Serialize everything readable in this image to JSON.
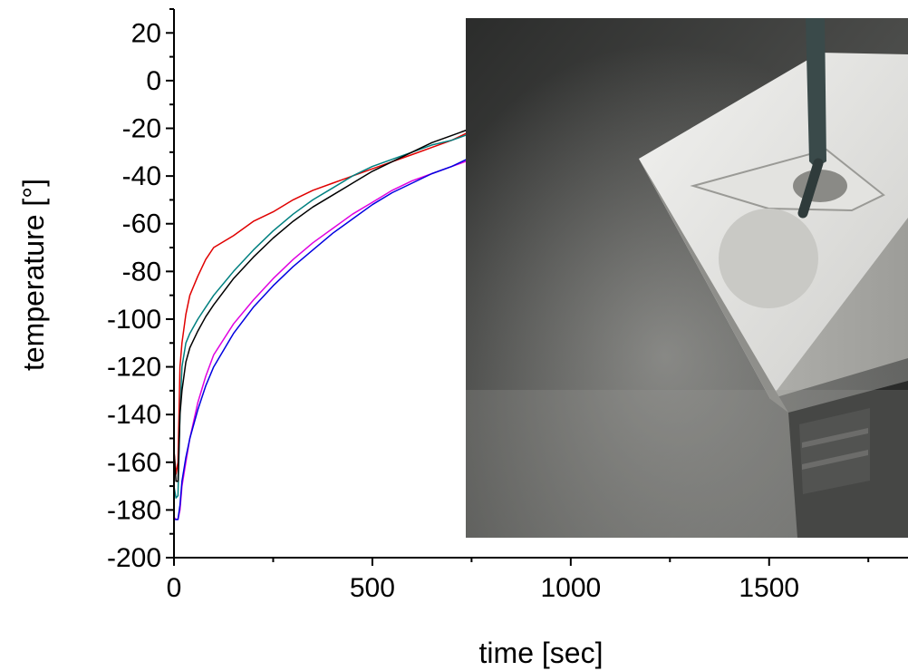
{
  "chart_data": {
    "type": "line",
    "xlabel": "time [sec]",
    "ylabel": "temperature [°]",
    "xlim": [
      0,
      1850
    ],
    "ylim": [
      -200,
      30
    ],
    "x_ticks": [
      0,
      500,
      1000,
      1500
    ],
    "x_tick_labels": [
      "0",
      "500",
      "1000",
      "1500"
    ],
    "y_ticks": [
      20,
      0,
      -20,
      -40,
      -60,
      -80,
      -100,
      -120,
      -140,
      -160,
      -180,
      -200
    ],
    "y_tick_labels": [
      "20",
      "0",
      "-20",
      "-40",
      "-60",
      "-80",
      "-100",
      "-120",
      "-140",
      "-160",
      "-180",
      "-200"
    ],
    "grid": false,
    "legend": "none",
    "inset_photo": "frosted cube with metal rod in cold vapor",
    "series": [
      {
        "color": "#e00000",
        "x": [
          0,
          5,
          10,
          15,
          20,
          30,
          40,
          60,
          80,
          100,
          150,
          200,
          250,
          300,
          350,
          400,
          450,
          500,
          550,
          600,
          650,
          700,
          750
        ],
        "y": [
          -155,
          -165,
          -160,
          -120,
          -110,
          -98,
          -90,
          -82,
          -75,
          -70,
          -65,
          -59,
          -55,
          -50,
          -46,
          -43,
          -40,
          -37,
          -34,
          -31,
          -28,
          -25,
          -21
        ]
      },
      {
        "color": "#008080",
        "x": [
          0,
          5,
          10,
          15,
          20,
          30,
          40,
          60,
          80,
          100,
          150,
          200,
          250,
          300,
          350,
          400,
          450,
          500,
          550,
          600,
          650,
          700,
          750
        ],
        "y": [
          -170,
          -175,
          -174,
          -140,
          -120,
          -110,
          -106,
          -100,
          -95,
          -90,
          -80,
          -71,
          -63,
          -56,
          -50,
          -45,
          -40,
          -36,
          -33,
          -30,
          -27,
          -25,
          -22
        ]
      },
      {
        "color": "#000000",
        "x": [
          0,
          5,
          10,
          15,
          20,
          30,
          40,
          60,
          80,
          100,
          150,
          200,
          250,
          300,
          350,
          400,
          450,
          500,
          550,
          600,
          650,
          700,
          750
        ],
        "y": [
          -155,
          -168,
          -168,
          -140,
          -130,
          -118,
          -112,
          -105,
          -99,
          -94,
          -83,
          -74,
          -66,
          -59,
          -53,
          -48,
          -43,
          -38,
          -34,
          -30,
          -26,
          -23,
          -20
        ]
      },
      {
        "color": "#e000e0",
        "x": [
          0,
          5,
          10,
          15,
          20,
          30,
          40,
          60,
          80,
          100,
          150,
          200,
          250,
          300,
          350,
          400,
          450,
          500,
          550,
          600,
          650,
          700,
          750
        ],
        "y": [
          -183,
          -184,
          -184,
          -180,
          -170,
          -160,
          -150,
          -135,
          -124,
          -115,
          -102,
          -92,
          -83,
          -75,
          -68,
          -62,
          -56,
          -51,
          -46,
          -42,
          -39,
          -36,
          -33
        ]
      },
      {
        "color": "#0000e0",
        "x": [
          0,
          5,
          10,
          15,
          20,
          30,
          40,
          60,
          80,
          100,
          150,
          200,
          250,
          300,
          350,
          400,
          450,
          500,
          550,
          600,
          650,
          700,
          750
        ],
        "y": [
          -184,
          -184,
          -184,
          -178,
          -168,
          -158,
          -150,
          -138,
          -128,
          -120,
          -106,
          -95,
          -86,
          -78,
          -71,
          -64,
          -58,
          -52,
          -47,
          -43,
          -39,
          -36,
          -32
        ]
      }
    ]
  }
}
